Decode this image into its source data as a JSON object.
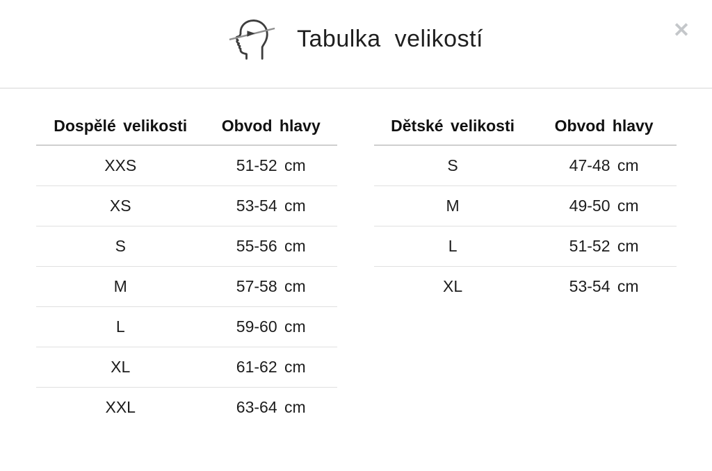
{
  "dialog": {
    "title": "Tabulka velikostí",
    "head_icon": "head-with-measuring-tape",
    "close_icon": "✕"
  },
  "size_tables": [
    {
      "id": "adult",
      "headers": [
        "Dospělé velikosti",
        "Obvod hlavy"
      ],
      "rows": [
        [
          "XXS",
          "51-52 cm"
        ],
        [
          "XS",
          "53-54 cm"
        ],
        [
          "S",
          "55-56 cm"
        ],
        [
          "M",
          "57-58 cm"
        ],
        [
          "L",
          "59-60 cm"
        ],
        [
          "XL",
          "61-62 cm"
        ],
        [
          "XXL",
          "63-64 cm"
        ]
      ]
    },
    {
      "id": "children",
      "headers": [
        "Dětské velikosti",
        "Obvod hlavy"
      ],
      "rows": [
        [
          "S",
          "47-48 cm"
        ],
        [
          "M",
          "49-50 cm"
        ],
        [
          "L",
          "51-52 cm"
        ],
        [
          "XL",
          "53-54 cm"
        ]
      ]
    }
  ],
  "colors": {
    "text": "#1c1c1c",
    "row_divider": "#e0e0e0",
    "header_rule": "#cfcfcf",
    "section_divider": "#e9e9e9",
    "close_icon": "#c4c7ca",
    "icon_stroke": "#3d3d3d",
    "tape_line": "#8f8f8f"
  }
}
